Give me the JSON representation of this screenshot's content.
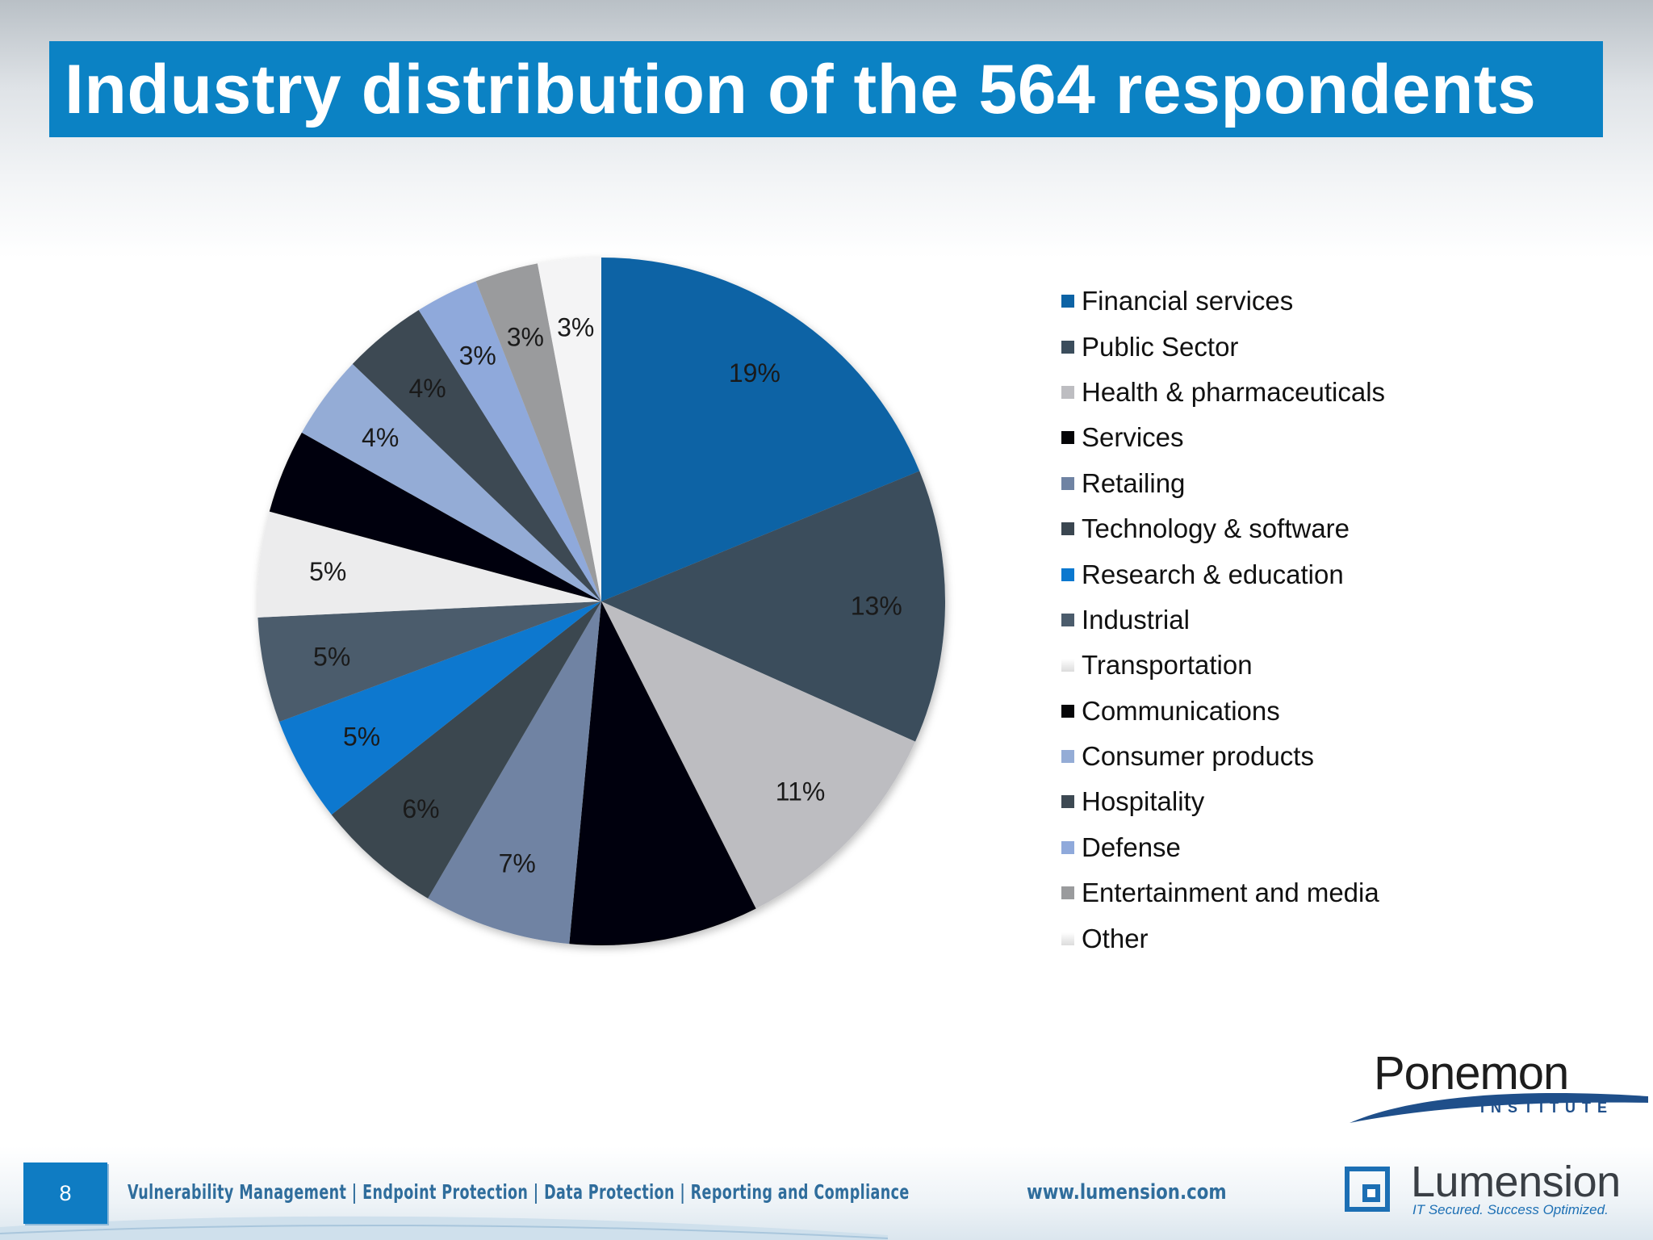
{
  "title": "Industry distribution of the 564 respondents",
  "chart_data": {
    "type": "pie",
    "title": "Industry distribution of the 564 respondents",
    "legend_position": "right",
    "slices": [
      {
        "label": "Financial services",
        "value": 19,
        "display": "19%",
        "color": "#0d63a5"
      },
      {
        "label": "Public Sector",
        "value": 13,
        "display": "13%",
        "color": "#3b4d5c"
      },
      {
        "label": "Health & pharmaceuticals",
        "value": 11,
        "display": "11%",
        "color": "#bdbdc1"
      },
      {
        "label": "Services",
        "value": 9,
        "display": "",
        "color": "#050507"
      },
      {
        "label": "Retailing",
        "value": 7,
        "display": "7%",
        "color": "#6f83a3"
      },
      {
        "label": "Technology & software",
        "value": 6,
        "display": "6%",
        "color": "#3a4650"
      },
      {
        "label": "Research & education",
        "value": 5,
        "display": "5%",
        "color": "#0b78cf"
      },
      {
        "label": "Industrial",
        "value": 5,
        "display": "5%",
        "color": "#4b5c6c"
      },
      {
        "label": "Transportation",
        "value": 5,
        "display": "5%",
        "color": "#ececed"
      },
      {
        "label": "Communications",
        "value": 4,
        "display": "",
        "color": "#060608"
      },
      {
        "label": "Consumer products",
        "value": 4,
        "display": "4%",
        "color": "#94acd6"
      },
      {
        "label": "Hospitality",
        "value": 4,
        "display": "4%",
        "color": "#3d4953"
      },
      {
        "label": "Defense",
        "value": 3,
        "display": "3%",
        "color": "#8fa9db"
      },
      {
        "label": "Entertainment and media",
        "value": 3,
        "display": "3%",
        "color": "#9a9b9d"
      },
      {
        "label": "Other",
        "value": 3,
        "display": "3%",
        "color": "#f4f4f5"
      }
    ]
  },
  "footer": {
    "page_number": "8",
    "tagline": "Vulnerability Management | Endpoint Protection | Data Protection | Reporting and Compliance",
    "url": "www.lumension.com"
  },
  "logos": {
    "ponemon_name": "Ponemon",
    "ponemon_sub": "INSTITUTE",
    "ponemon_accent": "#f28a12",
    "lumension_name": "Lumension",
    "lumension_tagline": "IT Secured. Success Optimized.",
    "lumension_accent": "#1c6fb4"
  }
}
